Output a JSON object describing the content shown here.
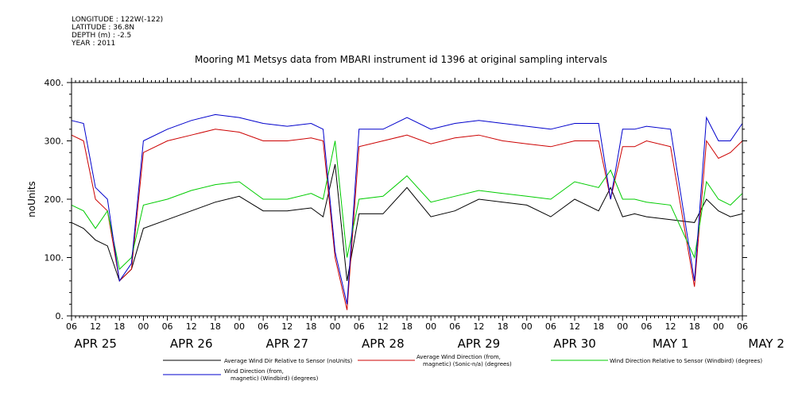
{
  "meta": {
    "longitude": "LONGITUDE : 122W(-122)",
    "latitude": "LATITUDE : 36.8N",
    "depth": "DEPTH (m) : -2.5",
    "year": "YEAR : 2011"
  },
  "chart_data": {
    "type": "line",
    "title": "Mooring M1 Metsys data from MBARI instrument id 1396 at original sampling intervals",
    "ylabel": "noUnits",
    "xlabel": "",
    "ylim": [
      0,
      400
    ],
    "y_ticks": [
      "0.",
      "100.",
      "200.",
      "300.",
      "400."
    ],
    "xlim_hours": [
      0,
      168
    ],
    "hour_ticks": [
      "06",
      "12",
      "18",
      "00",
      "06",
      "12",
      "18",
      "00",
      "06",
      "12",
      "18",
      "00",
      "06",
      "12",
      "18",
      "00",
      "06",
      "12",
      "18",
      "00",
      "06",
      "12",
      "18",
      "00",
      "06",
      "12",
      "18",
      "00",
      "06"
    ],
    "date_labels": [
      "APR 25",
      "APR 26",
      "APR 27",
      "APR 28",
      "APR 29",
      "APR 30",
      "MAY  1",
      "MAY  2"
    ],
    "grid": false,
    "legend_position": "bottom",
    "series": [
      {
        "name": "Average Wind Dir Relative to Sensor (noUnits)",
        "color": "#000000",
        "x": [
          0,
          3,
          6,
          9,
          12,
          15,
          18,
          24,
          30,
          36,
          42,
          48,
          54,
          60,
          63,
          66,
          69,
          72,
          78,
          84,
          90,
          96,
          102,
          108,
          114,
          120,
          126,
          132,
          135,
          138,
          141,
          144,
          150,
          156,
          159,
          162,
          165,
          168
        ],
        "y": [
          160,
          150,
          130,
          120,
          60,
          80,
          150,
          165,
          180,
          195,
          205,
          180,
          180,
          185,
          170,
          260,
          60,
          175,
          175,
          220,
          170,
          180,
          200,
          195,
          190,
          170,
          200,
          180,
          220,
          170,
          175,
          170,
          165,
          160,
          200,
          180,
          170,
          175
        ]
      },
      {
        "name": "Average Wind Direction (from, magnetic) (Sonic-n/a) (degrees)",
        "color": "#cc0000",
        "x": [
          0,
          3,
          6,
          9,
          12,
          15,
          18,
          24,
          30,
          36,
          42,
          48,
          54,
          60,
          63,
          66,
          69,
          72,
          78,
          84,
          90,
          96,
          102,
          108,
          114,
          120,
          126,
          132,
          135,
          138,
          141,
          144,
          150,
          156,
          159,
          162,
          165,
          168
        ],
        "y": [
          310,
          300,
          200,
          180,
          60,
          80,
          280,
          300,
          310,
          320,
          315,
          300,
          300,
          305,
          300,
          100,
          10,
          290,
          300,
          310,
          295,
          305,
          310,
          300,
          295,
          290,
          300,
          300,
          200,
          290,
          290,
          300,
          290,
          50,
          300,
          270,
          280,
          300
        ]
      },
      {
        "name": "Wind Direction Relative to Sensor (Windbird) (degrees)",
        "color": "#00cc00",
        "x": [
          0,
          3,
          6,
          9,
          12,
          15,
          18,
          24,
          30,
          36,
          42,
          48,
          54,
          60,
          63,
          66,
          69,
          72,
          78,
          84,
          90,
          96,
          102,
          108,
          114,
          120,
          126,
          132,
          135,
          138,
          141,
          144,
          150,
          156,
          159,
          162,
          165,
          168
        ],
        "y": [
          190,
          180,
          150,
          180,
          80,
          100,
          190,
          200,
          215,
          225,
          230,
          200,
          200,
          210,
          200,
          300,
          100,
          200,
          205,
          240,
          195,
          205,
          215,
          210,
          205,
          200,
          230,
          220,
          250,
          200,
          200,
          195,
          190,
          100,
          230,
          200,
          190,
          210
        ]
      },
      {
        "name": "Wind Direction (from, magnetic) (Windbird) (degrees)",
        "color": "#0000cc",
        "x": [
          0,
          3,
          6,
          9,
          12,
          15,
          18,
          24,
          30,
          36,
          42,
          48,
          54,
          60,
          63,
          66,
          69,
          72,
          78,
          84,
          90,
          96,
          102,
          108,
          114,
          120,
          126,
          132,
          135,
          138,
          141,
          144,
          150,
          156,
          159,
          162,
          165,
          168
        ],
        "y": [
          335,
          330,
          220,
          200,
          60,
          90,
          300,
          320,
          335,
          345,
          340,
          330,
          325,
          330,
          320,
          110,
          20,
          320,
          320,
          340,
          320,
          330,
          335,
          330,
          325,
          320,
          330,
          330,
          200,
          320,
          320,
          325,
          320,
          60,
          340,
          300,
          300,
          330
        ]
      }
    ]
  },
  "legend": {
    "s1": "Average Wind Dir Relative to Sensor (noUnits)",
    "s2_line1": "Average Wind Direction (from,",
    "s2_line2": "magnetic) (Sonic-n/a) (degrees)",
    "s3": "Wind Direction Relative to Sensor (Windbird) (degrees)",
    "s4_line1": "Wind Direction (from,",
    "s4_line2": "magnetic) (Windbird) (degrees)"
  }
}
